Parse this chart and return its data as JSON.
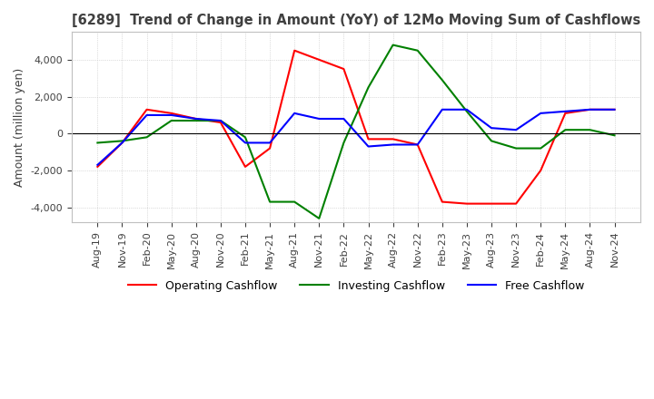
{
  "title": "[6289]  Trend of Change in Amount (YoY) of 12Mo Moving Sum of Cashflows",
  "ylabel": "Amount (million yen)",
  "ylim": [
    -4800,
    5500
  ],
  "yticks": [
    -4000,
    -2000,
    0,
    2000,
    4000
  ],
  "x_labels": [
    "Aug-19",
    "Nov-19",
    "Feb-20",
    "May-20",
    "Aug-20",
    "Nov-20",
    "Feb-21",
    "May-21",
    "Aug-21",
    "Nov-21",
    "Feb-22",
    "May-22",
    "Aug-22",
    "Nov-22",
    "Feb-23",
    "May-23",
    "Aug-23",
    "Nov-23",
    "Feb-24",
    "May-24",
    "Aug-24",
    "Nov-24"
  ],
  "operating": [
    -1800,
    -500,
    1300,
    1100,
    800,
    600,
    -1800,
    -800,
    4500,
    4000,
    3500,
    -300,
    -300,
    -600,
    -3700,
    -3800,
    -3800,
    -3800,
    -2000,
    1100,
    1300,
    1300
  ],
  "investing": [
    -500,
    -400,
    -200,
    700,
    700,
    700,
    -200,
    -3700,
    -3700,
    -4600,
    -500,
    2500,
    4800,
    4500,
    2900,
    1200,
    -400,
    -800,
    -800,
    200,
    200,
    -100
  ],
  "free_cashflow": [
    -1700,
    -500,
    1000,
    1000,
    800,
    700,
    -500,
    -500,
    1100,
    800,
    800,
    -700,
    -600,
    -600,
    1300,
    1300,
    300,
    200,
    1100,
    1200,
    1300,
    1300
  ],
  "operating_color": "#ff0000",
  "investing_color": "#008000",
  "free_color": "#0000ff",
  "bg_color": "#ffffff",
  "grid_color": "#c0c0c0",
  "title_color": "#404040"
}
